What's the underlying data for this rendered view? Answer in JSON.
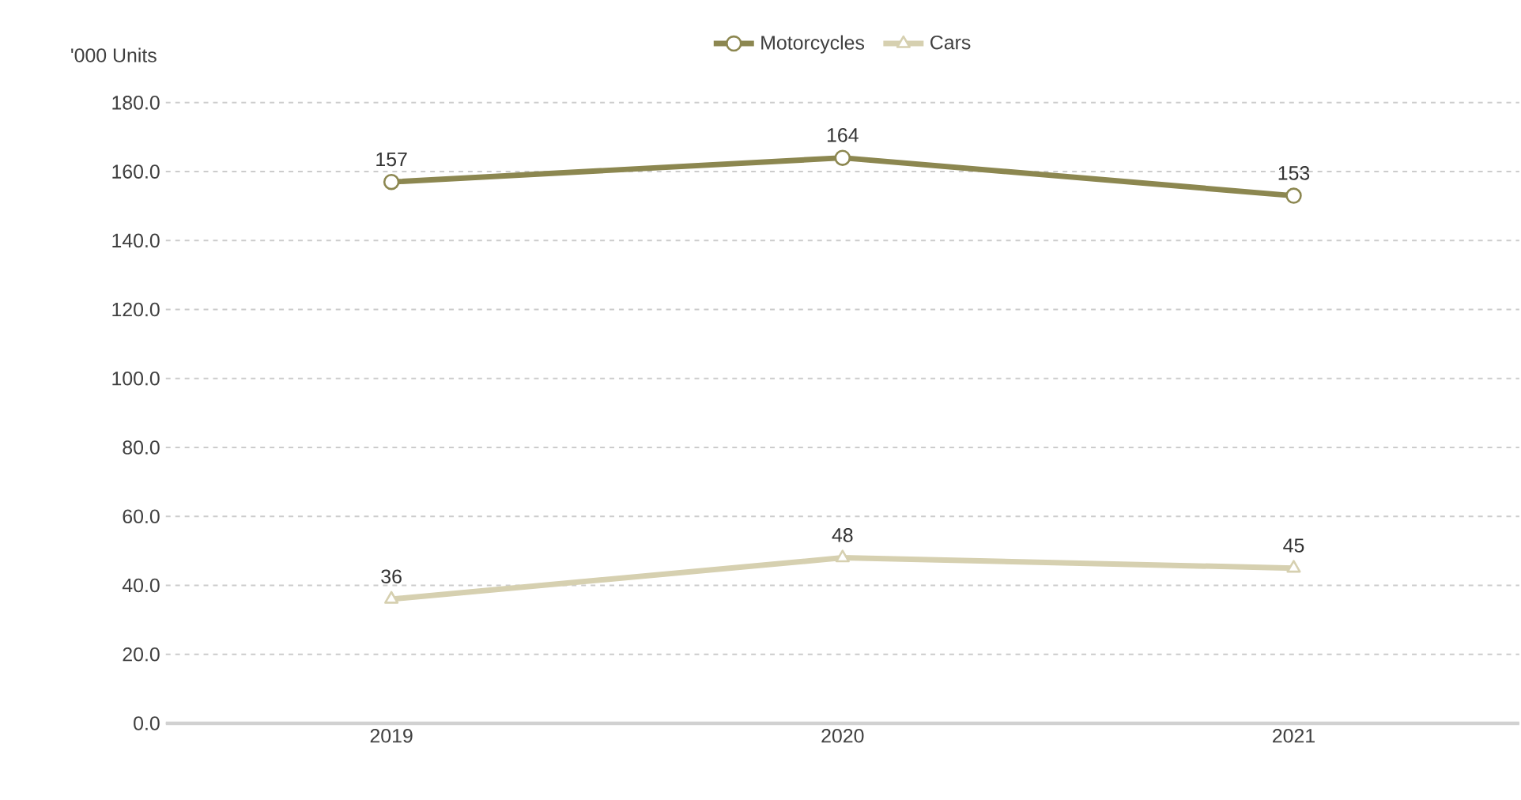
{
  "chart_data": {
    "type": "line",
    "ylabel": "'000 Units",
    "categories": [
      "2019",
      "2020",
      "2021"
    ],
    "series": [
      {
        "name": "Motorcycles",
        "color": "#8c8750",
        "marker": "circle",
        "values": [
          157,
          164,
          153
        ]
      },
      {
        "name": "Cars",
        "color": "#d6d0b0",
        "marker": "triangle",
        "values": [
          36,
          48,
          45
        ]
      }
    ],
    "ylim": [
      0,
      180
    ],
    "yticks": [
      {
        "value": 0,
        "label": "0.0"
      },
      {
        "value": 20,
        "label": "20.0"
      },
      {
        "value": 40,
        "label": "40.0"
      },
      {
        "value": 60,
        "label": "60.0"
      },
      {
        "value": 80,
        "label": "80.0"
      },
      {
        "value": 100,
        "label": "100.0"
      },
      {
        "value": 120,
        "label": "120.0"
      },
      {
        "value": 140,
        "label": "140.0"
      },
      {
        "value": 160,
        "label": "160.0"
      },
      {
        "value": 180,
        "label": "180.0"
      }
    ],
    "grid": "y",
    "legend": "top",
    "data_labels": true,
    "line_style": "solid"
  }
}
